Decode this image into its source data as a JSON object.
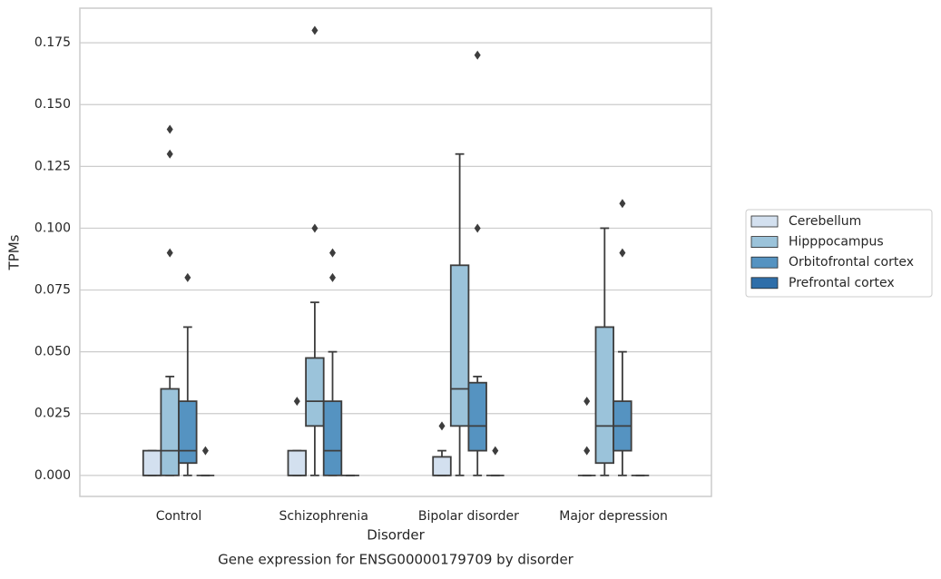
{
  "chart_data": {
    "type": "box",
    "title": "Gene expression for ENSG00000179709 by disorder",
    "xlabel": "Disorder",
    "ylabel": "TPMs",
    "categories": [
      "Control",
      "Schizophrenia",
      "Bipolar disorder",
      "Major depression"
    ],
    "ylim": [
      -0.0085,
      0.189
    ],
    "yticks": [
      {
        "value": 0,
        "label": "0.000"
      },
      {
        "value": 0.025,
        "label": "0.025"
      },
      {
        "value": 0.05,
        "label": "0.050"
      },
      {
        "value": 0.075,
        "label": "0.075"
      },
      {
        "value": 0.1,
        "label": "0.100"
      },
      {
        "value": 0.125,
        "label": "0.125"
      },
      {
        "value": 0.15,
        "label": "0.150"
      },
      {
        "value": 0.175,
        "label": "0.175"
      }
    ],
    "grid": true,
    "legend": "right",
    "series": [
      {
        "name": "Cerebellum",
        "color": "#d3e0ef",
        "boxes": [
          {
            "min": 0,
            "q1": 0,
            "median": 0,
            "q3": 0.01,
            "max": 0.01,
            "outliers": []
          },
          {
            "min": 0,
            "q1": 0,
            "median": 0,
            "q3": 0.01,
            "max": 0.01,
            "outliers": [
              0.03
            ]
          },
          {
            "min": 0,
            "q1": 0,
            "median": 0,
            "q3": 0.0075,
            "max": 0.01,
            "outliers": [
              0.02
            ]
          },
          {
            "min": 0,
            "q1": 0,
            "median": 0,
            "q3": 0,
            "max": 0,
            "outliers": [
              0.01,
              0.03
            ]
          }
        ]
      },
      {
        "name": "Hipppocampus",
        "color": "#9bc3da",
        "boxes": [
          {
            "min": 0,
            "q1": 0,
            "median": 0.01,
            "q3": 0.035,
            "max": 0.04,
            "outliers": [
              0.09,
              0.13,
              0.14
            ]
          },
          {
            "min": 0,
            "q1": 0.02,
            "median": 0.03,
            "q3": 0.0475,
            "max": 0.07,
            "outliers": [
              0.1,
              0.18
            ]
          },
          {
            "min": 0,
            "q1": 0.02,
            "median": 0.035,
            "q3": 0.085,
            "max": 0.13,
            "outliers": []
          },
          {
            "min": 0,
            "q1": 0.005,
            "median": 0.02,
            "q3": 0.06,
            "max": 0.1,
            "outliers": []
          }
        ]
      },
      {
        "name": "Orbitofrontal cortex",
        "color": "#5593c1",
        "boxes": [
          {
            "min": 0,
            "q1": 0.005,
            "median": 0.01,
            "q3": 0.03,
            "max": 0.06,
            "outliers": [
              0.08
            ]
          },
          {
            "min": 0,
            "q1": 0,
            "median": 0.01,
            "q3": 0.03,
            "max": 0.05,
            "outliers": [
              0.08,
              0.09
            ]
          },
          {
            "min": 0,
            "q1": 0.01,
            "median": 0.02,
            "q3": 0.0375,
            "max": 0.04,
            "outliers": [
              0.1,
              0.17
            ]
          },
          {
            "min": 0,
            "q1": 0.01,
            "median": 0.02,
            "q3": 0.03,
            "max": 0.05,
            "outliers": [
              0.09,
              0.11
            ]
          }
        ]
      },
      {
        "name": "Prefrontal cortex",
        "color": "#2e6ea9",
        "boxes": [
          {
            "min": 0,
            "q1": 0,
            "median": 0,
            "q3": 0,
            "max": 0,
            "outliers": [
              0.01
            ]
          },
          {
            "min": 0,
            "q1": 0,
            "median": 0,
            "q3": 0,
            "max": 0,
            "outliers": []
          },
          {
            "min": 0,
            "q1": 0,
            "median": 0,
            "q3": 0,
            "max": 0,
            "outliers": [
              0.01
            ]
          },
          {
            "min": 0,
            "q1": 0,
            "median": 0,
            "q3": 0,
            "max": 0,
            "outliers": []
          }
        ]
      }
    ]
  }
}
